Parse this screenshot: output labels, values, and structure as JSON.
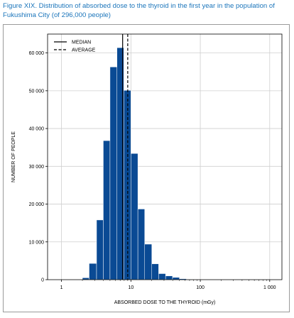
{
  "caption": "Figure XIX. Distribution of absorbed dose to the thyroid in the first year in the population of Fukushima City (of 296,000 people)",
  "chart_data": {
    "type": "bar",
    "xscale": "log",
    "xlim": [
      0.63,
      1500
    ],
    "ylim": [
      0,
      65000
    ],
    "xlabel": "ABSORBED DOSE TO THE THYROID (mGy)",
    "ylabel": "NUMBER OF PEOPLE",
    "x_ticks": [
      1,
      10,
      100,
      1000
    ],
    "x_tick_labels": [
      "1",
      "10",
      "100",
      "1 000"
    ],
    "y_ticks": [
      0,
      10000,
      20000,
      30000,
      40000,
      50000,
      60000
    ],
    "y_tick_labels": [
      "0",
      "10 000",
      "20 000",
      "30 000",
      "40 000",
      "50 000",
      "60 000"
    ],
    "grid": true,
    "bar_color": "#0a4a94",
    "bins": [
      {
        "from": 2.0,
        "to": 2.5,
        "value": 500
      },
      {
        "from": 2.5,
        "to": 3.2,
        "value": 4300
      },
      {
        "from": 3.2,
        "to": 4.0,
        "value": 15800
      },
      {
        "from": 4.0,
        "to": 5.0,
        "value": 36800
      },
      {
        "from": 5.0,
        "to": 6.3,
        "value": 56300
      },
      {
        "from": 6.3,
        "to": 7.9,
        "value": 61400
      },
      {
        "from": 7.9,
        "to": 10.0,
        "value": 50100
      },
      {
        "from": 10.0,
        "to": 12.6,
        "value": 33400
      },
      {
        "from": 12.6,
        "to": 15.8,
        "value": 18700
      },
      {
        "from": 15.8,
        "to": 20.0,
        "value": 9400
      },
      {
        "from": 20.0,
        "to": 25.1,
        "value": 4200
      },
      {
        "from": 25.1,
        "to": 31.6,
        "value": 1600
      },
      {
        "from": 31.6,
        "to": 39.8,
        "value": 1000
      },
      {
        "from": 39.8,
        "to": 50.1,
        "value": 600
      },
      {
        "from": 50.1,
        "to": 63.1,
        "value": 250
      },
      {
        "from": 63.1,
        "to": 79.4,
        "value": 100
      }
    ],
    "median": 7.6,
    "average": 9.0,
    "legend": {
      "position": "top-left",
      "entries": [
        {
          "label": "MEDIAN",
          "style": "solid"
        },
        {
          "label": "AVERAGE",
          "style": "dashed"
        }
      ]
    }
  }
}
